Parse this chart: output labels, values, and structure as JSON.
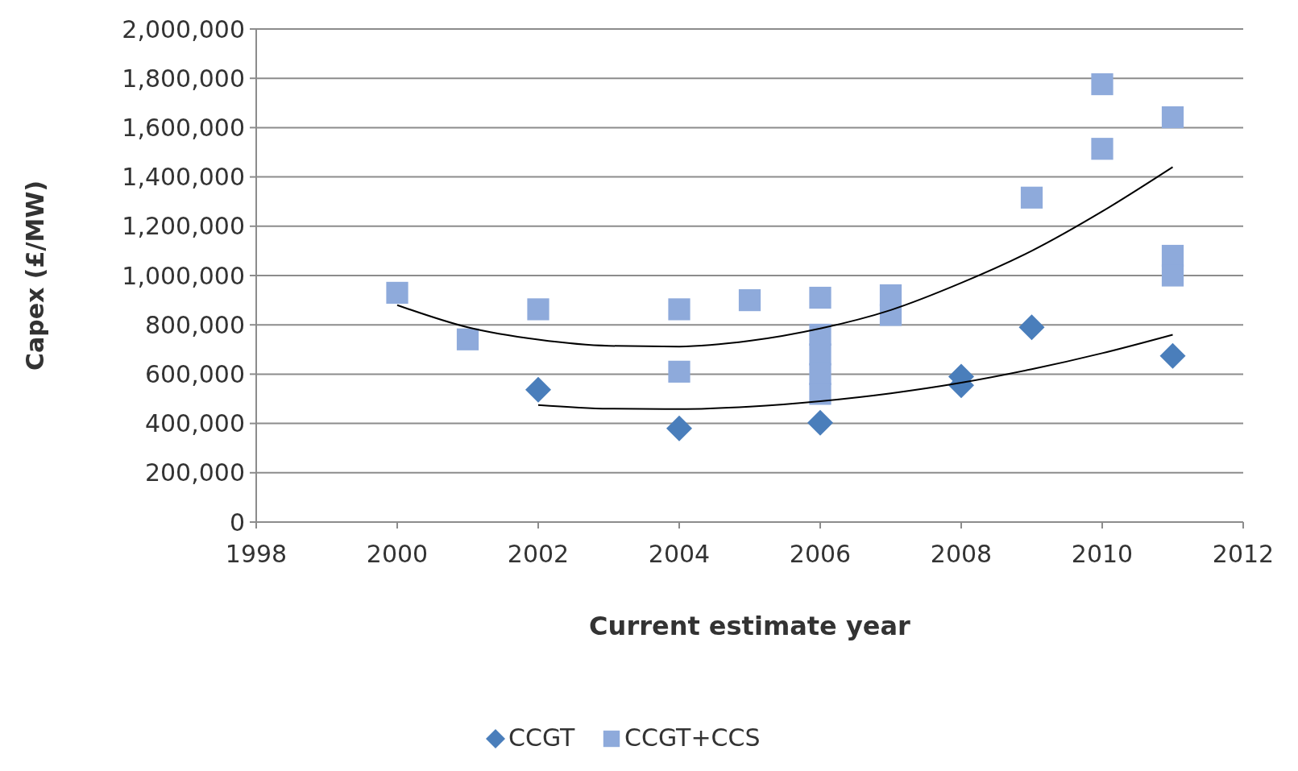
{
  "chart_data": {
    "type": "scatter",
    "xlabel": "Current estimate year",
    "ylabel": "Capex  (£/MW)",
    "xlim": [
      1998,
      2012
    ],
    "xticks": [
      1998,
      2000,
      2002,
      2004,
      2006,
      2008,
      2010,
      2012
    ],
    "ylim": [
      0,
      2000000
    ],
    "yticks": [
      {
        "value": 0,
        "label": "0"
      },
      {
        "value": 200000,
        "label": "200,000"
      },
      {
        "value": 400000,
        "label": "400,000"
      },
      {
        "value": 600000,
        "label": "600,000"
      },
      {
        "value": 800000,
        "label": "800,000"
      },
      {
        "value": 1000000,
        "label": "1,000,000"
      },
      {
        "value": 1200000,
        "label": "1,200,000"
      },
      {
        "value": 1400000,
        "label": "1,400,000"
      },
      {
        "value": 1600000,
        "label": "1,600,000"
      },
      {
        "value": 1800000,
        "label": "1,800,000"
      },
      {
        "value": 2000000,
        "label": "2,000,000"
      }
    ],
    "grid": "y",
    "legend": "bottom",
    "series": [
      {
        "name": "CCGT",
        "marker": "diamond",
        "color": "#4a7ebb",
        "x": [
          2002,
          2004,
          2006,
          2008,
          2008,
          2009,
          2011
        ],
        "values": [
          537000,
          380000,
          403000,
          590000,
          555000,
          790000,
          674000
        ]
      },
      {
        "name": "CCGT+CCS",
        "marker": "square",
        "color": "#8eaadb",
        "x": [
          2000,
          2001,
          2002,
          2004,
          2004,
          2005,
          2006,
          2006,
          2006,
          2006,
          2006,
          2007,
          2007,
          2009,
          2010,
          2010,
          2011,
          2011,
          2011
        ],
        "values": [
          930000,
          741000,
          863000,
          863000,
          610000,
          900000,
          910000,
          760000,
          680000,
          600000,
          520000,
          920000,
          840000,
          1316000,
          1776000,
          1514000,
          1642000,
          1080000,
          1000000
        ]
      },
      {
        "type": "line",
        "marker": "none",
        "color": "#000000",
        "x": [
          2000,
          2001,
          2002,
          2003,
          2004,
          2005,
          2006,
          2007,
          2008,
          2009,
          2010,
          2011
        ],
        "values": [
          880000,
          790000,
          740000,
          715000,
          712000,
          735000,
          785000,
          860000,
          970000,
          1100000,
          1260000,
          1440000
        ]
      },
      {
        "type": "line",
        "marker": "none",
        "color": "#000000",
        "x": [
          2002,
          2003,
          2004,
          2005,
          2006,
          2007,
          2008,
          2009,
          2010,
          2011
        ],
        "values": [
          475000,
          460000,
          458000,
          468000,
          490000,
          522000,
          565000,
          620000,
          685000,
          760000
        ]
      }
    ]
  }
}
